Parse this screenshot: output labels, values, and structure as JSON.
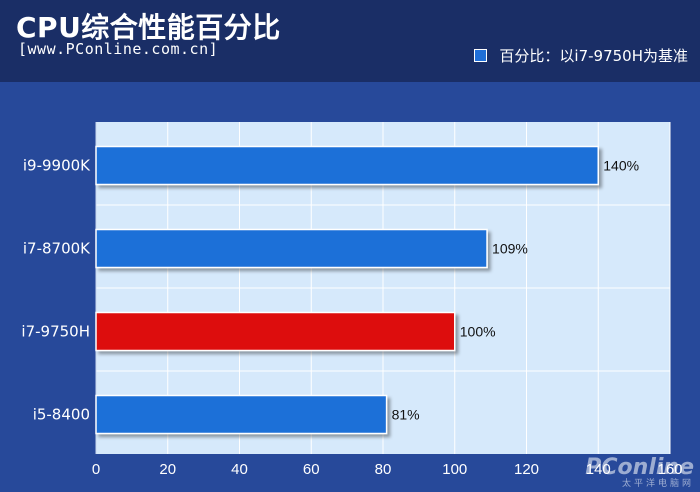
{
  "header": {
    "title": "CPU综合性能百分比",
    "subtitle": "[www.PConline.com.cn]",
    "legend_label": "百分比：以i7-9750H为基准"
  },
  "watermark": {
    "main": "PConline",
    "sub": "太平洋电脑网"
  },
  "chart_data": {
    "type": "bar",
    "orientation": "horizontal",
    "title": "CPU综合性能百分比",
    "categories": [
      "i9-9900K",
      "i7-8700K",
      "i7-9750H",
      "i5-8400"
    ],
    "series": [
      {
        "name": "百分比：以i7-9750H为基准",
        "values": [
          140,
          109,
          100,
          81
        ]
      }
    ],
    "data_labels": [
      "140%",
      "109%",
      "100%",
      "81%"
    ],
    "highlight_index": 2,
    "xlim": [
      0,
      160
    ],
    "xticks": [
      0,
      20,
      40,
      60,
      80,
      100,
      120,
      140,
      160
    ],
    "grid": true,
    "legend_position": "top-right",
    "colors": {
      "bar": "#1f6fd8",
      "highlight": "#dd0a0a",
      "plot_bg": "#d6e9fb",
      "grid": "#ffffff"
    }
  }
}
